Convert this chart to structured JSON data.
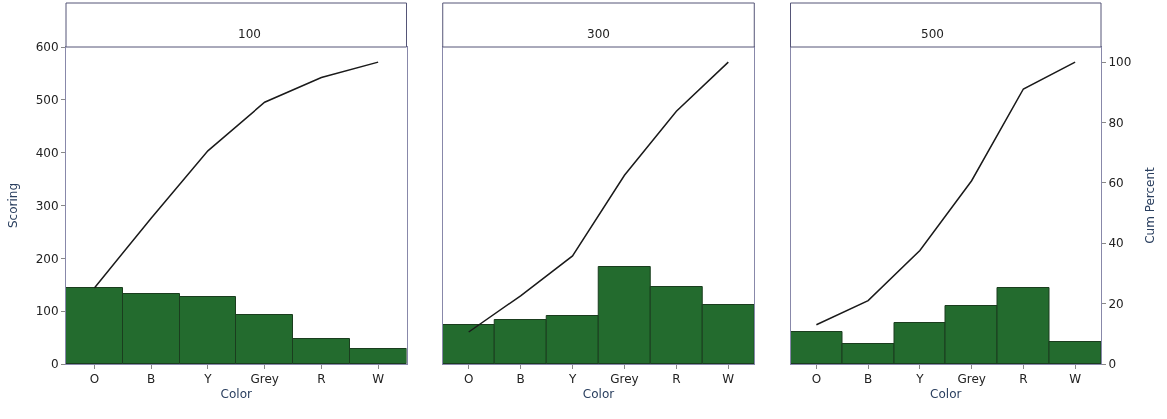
{
  "chart_data": [
    {
      "type": "bar",
      "title": "100",
      "xlabel": "Color",
      "ylabel": "Scoring",
      "categories": [
        "O",
        "B",
        "Y",
        "Grey",
        "R",
        "W"
      ],
      "series": [
        {
          "color": "#236b2e",
          "values": [
            144,
            132,
            127,
            92,
            47,
            29
          ]
        },
        {
          "type": "line",
          "axis": "y2",
          "color": "#1a1a1a",
          "values": [
            25.2,
            48.3,
            70.6,
            86.7,
            94.9,
            100
          ]
        }
      ],
      "ylim": [
        0,
        600
      ],
      "yticks": [
        0,
        100,
        200,
        300,
        400,
        500,
        600
      ],
      "y2lim": [
        0,
        105
      ],
      "tick_labels": "xy",
      "marker": "none",
      "line_style": "solid"
    },
    {
      "type": "bar",
      "title": "300",
      "xlabel": "Color",
      "categories": [
        "O",
        "B",
        "Y",
        "Grey",
        "R",
        "W"
      ],
      "series": [
        {
          "color": "#236b2e",
          "values": [
            73,
            83,
            91,
            184,
            146,
            112
          ]
        },
        {
          "type": "line",
          "axis": "y2",
          "color": "#1a1a1a",
          "values": [
            10.6,
            22.6,
            35.8,
            62.5,
            83.7,
            100
          ]
        }
      ],
      "ylim": [
        0,
        600
      ],
      "y2lim": [
        0,
        105
      ],
      "tick_labels": "x",
      "marker": "none",
      "line_style": "solid"
    },
    {
      "type": "bar",
      "title": "500",
      "xlabel": "Color",
      "y2label": "Cum Percent",
      "categories": [
        "O",
        "B",
        "Y",
        "Grey",
        "R",
        "W"
      ],
      "series": [
        {
          "color": "#236b2e",
          "values": [
            61,
            38,
            78,
            109,
            143,
            42
          ]
        },
        {
          "type": "line",
          "axis": "y2",
          "color": "#1a1a1a",
          "values": [
            13.0,
            21.0,
            37.6,
            60.7,
            91.1,
            100
          ]
        }
      ],
      "ylim": [
        0,
        600
      ],
      "y2lim": [
        0,
        105
      ],
      "y2ticks": [
        0,
        20,
        40,
        60,
        80,
        100
      ],
      "tick_labels": "xy2",
      "marker": "none",
      "line_style": "solid"
    }
  ]
}
